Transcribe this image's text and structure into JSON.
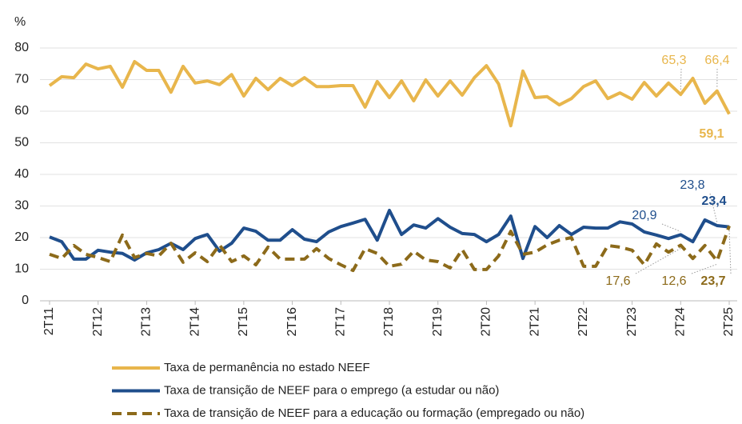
{
  "chart_data": {
    "type": "line",
    "y_label": "%",
    "categories": [
      "2T11",
      null,
      null,
      null,
      "2T12",
      null,
      null,
      null,
      "2T13",
      null,
      null,
      null,
      "2T14",
      null,
      null,
      null,
      "2T15",
      null,
      null,
      null,
      "2T16",
      null,
      null,
      null,
      "2T17",
      null,
      null,
      null,
      "2T18",
      null,
      null,
      null,
      "2T19",
      null,
      null,
      null,
      "2T20",
      null,
      null,
      null,
      "2T21",
      null,
      null,
      null,
      "2T22",
      null,
      null,
      null,
      "2T23",
      null,
      null,
      null,
      "2T24",
      null,
      null,
      null,
      "2T25"
    ],
    "ylim": [
      0,
      80
    ],
    "yticks": [
      0,
      10,
      20,
      30,
      40,
      50,
      60,
      70,
      80
    ],
    "grid": true,
    "series": [
      {
        "name": "Taxa de permanência no estado NEEF",
        "color": "#e8b64c",
        "dash": false,
        "values": [
          68.1,
          70.9,
          70.6,
          74.9,
          73.4,
          74.2,
          67.6,
          75.7,
          72.9,
          72.9,
          66,
          74.2,
          68.9,
          69.6,
          68.4,
          71.6,
          64.8,
          70.4,
          66.8,
          70.4,
          68.1,
          70.6,
          67.8,
          67.8,
          68.1,
          68.1,
          61.3,
          69.4,
          64.3,
          69.6,
          63.3,
          69.9,
          64.8,
          69.6,
          65.1,
          70.6,
          74.4,
          68.6,
          55.4,
          72.7,
          64.3,
          64.6,
          62,
          64,
          67.8,
          69.6,
          64,
          65.8,
          63.8,
          69.1,
          64.8,
          68.9,
          65.3,
          70.4,
          62.5,
          66.4,
          59.1
        ],
        "value_labels": [
          null,
          null,
          null,
          null,
          null,
          null,
          null,
          null,
          null,
          null,
          null,
          null,
          null,
          null,
          null,
          null,
          null,
          null,
          null,
          null,
          null,
          null,
          null,
          null,
          null,
          null,
          null,
          null,
          null,
          null,
          null,
          null,
          null,
          null,
          null,
          null,
          null,
          null,
          null,
          null,
          null,
          null,
          null,
          null,
          null,
          null,
          null,
          null,
          null,
          null,
          null,
          null,
          "65,3",
          null,
          null,
          "66,4",
          "59,1"
        ]
      },
      {
        "name": "Taxa de transição de NEEF para o emprego (a estudar ou não)",
        "color": "#1f4e8c",
        "dash": false,
        "values": [
          20.2,
          18.7,
          13.2,
          13.2,
          16,
          15.4,
          15,
          12.9,
          15.2,
          16.2,
          18.2,
          16.2,
          19.7,
          21,
          15.7,
          18.2,
          23,
          22,
          19.2,
          19.2,
          22.5,
          19.5,
          18.7,
          21.8,
          23.5,
          24.6,
          25.8,
          19.2,
          28.6,
          21,
          24,
          23,
          26,
          23.3,
          21.3,
          21,
          18.7,
          21,
          26.8,
          13.4,
          23.5,
          20,
          23.8,
          21,
          23.3,
          23,
          23,
          25,
          24.3,
          21.8,
          20.8,
          19.7,
          20.9,
          18.7,
          25.6,
          23.8,
          23.4
        ],
        "value_labels": [
          null,
          null,
          null,
          null,
          null,
          null,
          null,
          null,
          null,
          null,
          null,
          null,
          null,
          null,
          null,
          null,
          null,
          null,
          null,
          null,
          null,
          null,
          null,
          null,
          null,
          null,
          null,
          null,
          null,
          null,
          null,
          null,
          null,
          null,
          null,
          null,
          null,
          null,
          null,
          null,
          null,
          null,
          null,
          null,
          null,
          null,
          null,
          null,
          null,
          null,
          null,
          null,
          "20,9",
          null,
          null,
          "23,8",
          "23,4"
        ]
      },
      {
        "name": "Taxa de transição de NEEF para a educação ou formação (empregado ou não)",
        "color": "#8c6a1a",
        "dash": true,
        "values": [
          14.7,
          13.4,
          17.5,
          14.7,
          13.7,
          12.4,
          20.8,
          13.7,
          15,
          14.2,
          18.2,
          12.2,
          15.2,
          12.4,
          17.7,
          12.4,
          14.2,
          11.4,
          17,
          13.2,
          13.2,
          13.2,
          16.5,
          13.4,
          11.4,
          9.6,
          16.5,
          15,
          10.9,
          11.6,
          15.7,
          12.9,
          12.4,
          10.4,
          16.2,
          9.9,
          9.9,
          14.2,
          22,
          14.7,
          15.4,
          17.7,
          19.2,
          20,
          10.9,
          10.9,
          17.5,
          17,
          16,
          11.4,
          18,
          15.4,
          17.6,
          13.4,
          17.5,
          12.6,
          23.7
        ],
        "value_labels": [
          null,
          null,
          null,
          null,
          null,
          null,
          null,
          null,
          null,
          null,
          null,
          null,
          null,
          null,
          null,
          null,
          null,
          null,
          null,
          null,
          null,
          null,
          null,
          null,
          null,
          null,
          null,
          null,
          null,
          null,
          null,
          null,
          null,
          null,
          null,
          null,
          null,
          null,
          null,
          null,
          null,
          null,
          null,
          null,
          null,
          null,
          null,
          null,
          null,
          null,
          null,
          null,
          "17,6",
          null,
          null,
          "12,6",
          "23,7"
        ]
      }
    ]
  }
}
